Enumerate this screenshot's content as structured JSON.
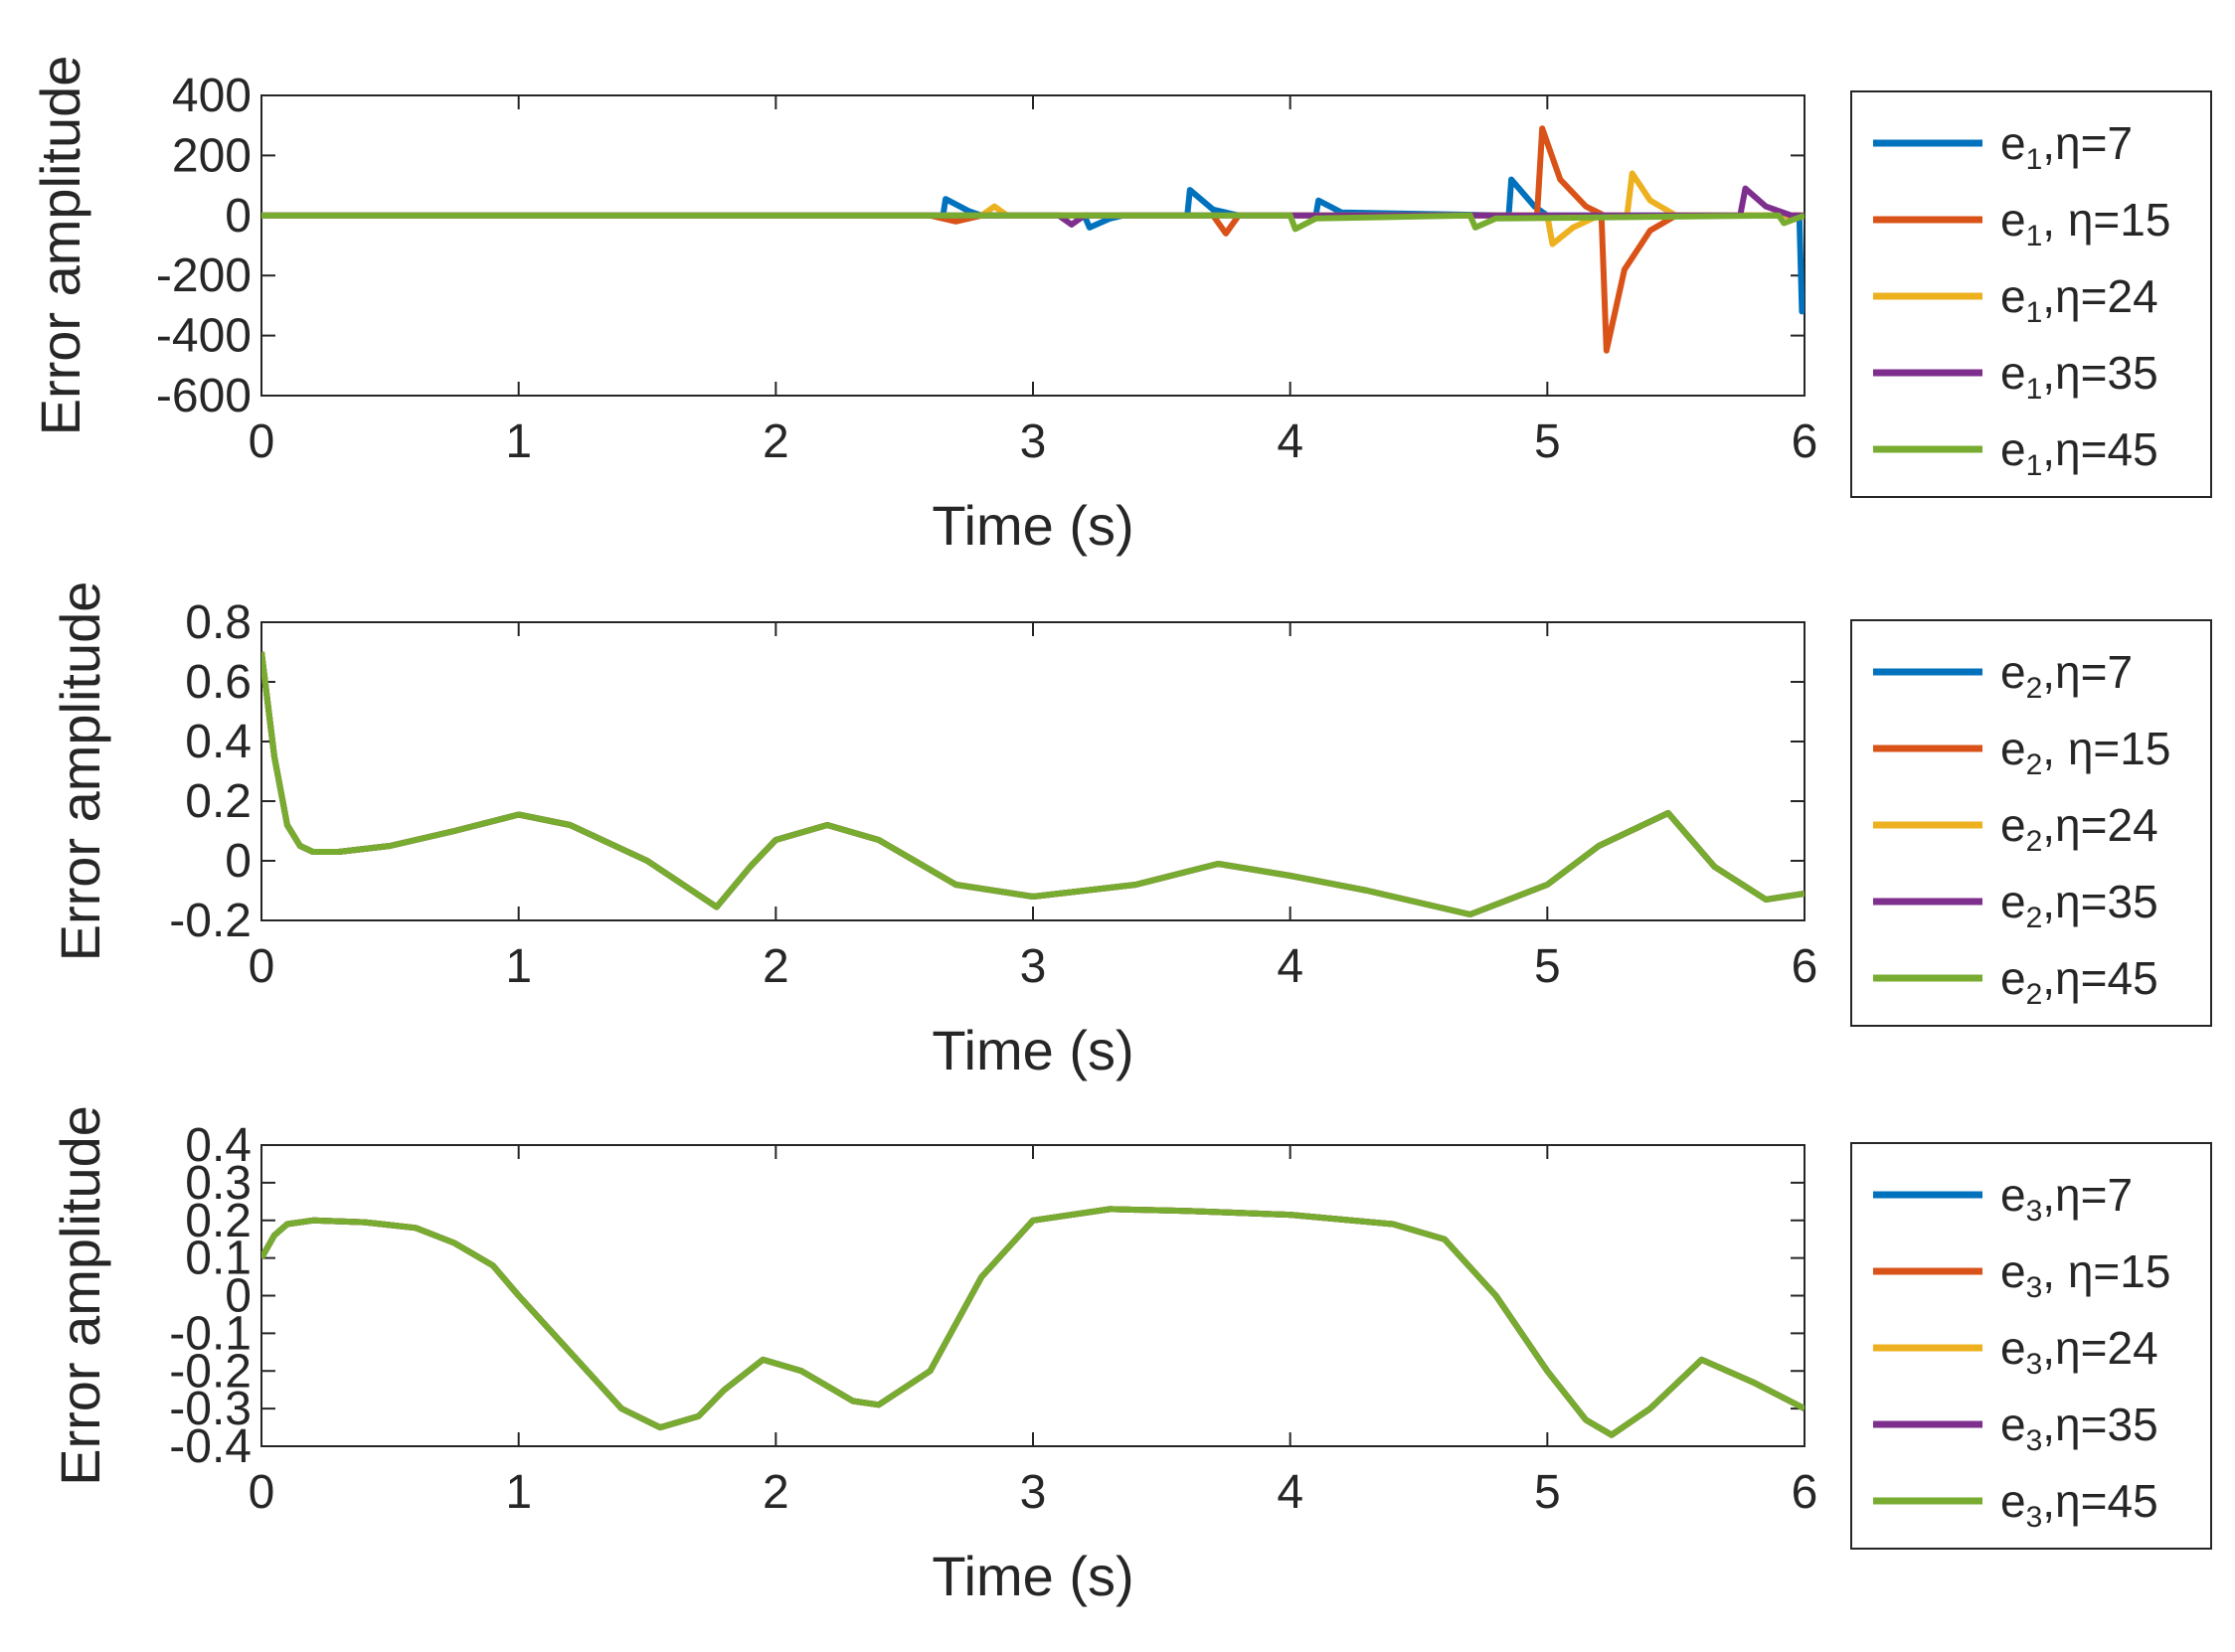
{
  "chart_data": [
    {
      "type": "line",
      "xlabel": "Time (s)",
      "ylabel": "Error amplitude",
      "xlim": [
        0,
        6
      ],
      "ylim": [
        -600,
        400
      ],
      "xticks": [
        "0",
        "1",
        "2",
        "3",
        "4",
        "5",
        "6"
      ],
      "yticks": [
        "400",
        "200",
        "0",
        "-200",
        "-400",
        "-600"
      ],
      "ytick_values": [
        400,
        200,
        0,
        -200,
        -400,
        -600
      ],
      "legend_position": "right-outside",
      "series": [
        {
          "name": "e1,η=7",
          "legend_base": "e",
          "legend_sub": "1",
          "legend_rest": ",η=7",
          "color": "#0072BD",
          "x": [
            0,
            2.65,
            2.66,
            2.75,
            2.8,
            3.2,
            3.22,
            3.3,
            3.35,
            3.6,
            3.61,
            3.7,
            3.8,
            4.1,
            4.11,
            4.2,
            4.85,
            4.86,
            4.95,
            5.0,
            5.8,
            5.98,
            5.99,
            6.0
          ],
          "y": [
            0,
            0,
            55,
            15,
            0,
            0,
            -40,
            -10,
            0,
            0,
            85,
            20,
            0,
            0,
            50,
            10,
            0,
            120,
            30,
            0,
            0,
            0,
            -320,
            -300
          ]
        },
        {
          "name": "e1, η=15",
          "legend_base": "e",
          "legend_sub": "1",
          "legend_rest": ", η=15",
          "color": "#D95319",
          "x": [
            0,
            2.6,
            2.7,
            2.8,
            3.7,
            3.75,
            3.8,
            4.9,
            4.96,
            4.98,
            5.05,
            5.15,
            5.21,
            5.23,
            5.3,
            5.4,
            5.5,
            6.0
          ],
          "y": [
            0,
            0,
            -20,
            0,
            0,
            -60,
            0,
            0,
            0,
            290,
            120,
            30,
            5,
            -450,
            -180,
            -50,
            0,
            0
          ]
        },
        {
          "name": "e1,η=24",
          "legend_base": "e",
          "legend_sub": "1",
          "legend_rest": ",η=24",
          "color": "#EDB120",
          "x": [
            0,
            2.8,
            2.85,
            2.9,
            5.0,
            5.02,
            5.1,
            5.2,
            5.31,
            5.33,
            5.4,
            5.5,
            6.0
          ],
          "y": [
            0,
            0,
            30,
            0,
            0,
            -95,
            -40,
            0,
            0,
            140,
            50,
            0,
            0
          ]
        },
        {
          "name": "e1,η=35",
          "legend_base": "e",
          "legend_sub": "1",
          "legend_rest": ",η=35",
          "color": "#7E2F8E",
          "x": [
            0,
            3.1,
            3.15,
            3.2,
            5.75,
            5.77,
            5.85,
            5.95,
            6.0
          ],
          "y": [
            0,
            0,
            -30,
            0,
            0,
            90,
            30,
            0,
            0
          ]
        },
        {
          "name": "e1,η=45",
          "legend_base": "e",
          "legend_sub": "1",
          "legend_rest": ",η=45",
          "color": "#77AC30",
          "x": [
            0,
            4.0,
            4.02,
            4.1,
            4.7,
            4.72,
            4.8,
            5.9,
            5.92,
            6.0
          ],
          "y": [
            0,
            0,
            -45,
            -10,
            0,
            -40,
            -10,
            0,
            -25,
            0
          ]
        }
      ]
    },
    {
      "type": "line",
      "xlabel": "Time (s)",
      "ylabel": "Error amplitude",
      "xlim": [
        0,
        6
      ],
      "ylim": [
        -0.2,
        0.8
      ],
      "xticks": [
        "0",
        "1",
        "2",
        "3",
        "4",
        "5",
        "6"
      ],
      "yticks": [
        "0.8",
        "0.6",
        "0.4",
        "0.2",
        "0",
        "-0.2"
      ],
      "ytick_values": [
        0.8,
        0.6,
        0.4,
        0.2,
        0,
        -0.2
      ],
      "legend_position": "right-outside",
      "shared_x": [
        0,
        0.05,
        0.1,
        0.15,
        0.2,
        0.3,
        0.5,
        0.75,
        1.0,
        1.2,
        1.5,
        1.77,
        1.9,
        2.0,
        2.2,
        2.4,
        2.7,
        3.0,
        3.4,
        3.72,
        4.0,
        4.3,
        4.7,
        5.0,
        5.2,
        5.47,
        5.65,
        5.85,
        6.0
      ],
      "shared_y": [
        0.7,
        0.35,
        0.12,
        0.05,
        0.03,
        0.03,
        0.05,
        0.1,
        0.155,
        0.12,
        0.0,
        -0.155,
        -0.02,
        0.07,
        0.12,
        0.07,
        -0.08,
        -0.12,
        -0.08,
        -0.01,
        -0.05,
        -0.1,
        -0.18,
        -0.08,
        0.05,
        0.16,
        -0.02,
        -0.13,
        -0.11
      ],
      "series": [
        {
          "name": "e2,η=7",
          "legend_base": "e",
          "legend_sub": "2",
          "legend_rest": ",η=7",
          "color": "#0072BD"
        },
        {
          "name": "e2, η=15",
          "legend_base": "e",
          "legend_sub": "2",
          "legend_rest": ", η=15",
          "color": "#D95319"
        },
        {
          "name": "e2,η=24",
          "legend_base": "e",
          "legend_sub": "2",
          "legend_rest": ",η=24",
          "color": "#EDB120"
        },
        {
          "name": "e2,η=35",
          "legend_base": "e",
          "legend_sub": "2",
          "legend_rest": ",η=35",
          "color": "#7E2F8E"
        },
        {
          "name": "e2,η=45",
          "legend_base": "e",
          "legend_sub": "2",
          "legend_rest": ",η=45",
          "color": "#77AC30"
        }
      ]
    },
    {
      "type": "line",
      "xlabel": "Time (s)",
      "ylabel": "Error amplitude",
      "xlim": [
        0,
        6
      ],
      "ylim": [
        -0.4,
        0.4
      ],
      "xticks": [
        "0",
        "1",
        "2",
        "3",
        "4",
        "5",
        "6"
      ],
      "yticks": [
        "0.4",
        "0.3",
        "0.2",
        "0.1",
        "0",
        "-0.1",
        "-0.2",
        "-0.3",
        "-0.4"
      ],
      "ytick_values": [
        0.4,
        0.3,
        0.2,
        0.1,
        0,
        -0.1,
        -0.2,
        -0.3,
        -0.4
      ],
      "legend_position": "right-outside",
      "shared_x": [
        0,
        0.05,
        0.1,
        0.2,
        0.4,
        0.6,
        0.75,
        0.9,
        1.0,
        1.2,
        1.4,
        1.55,
        1.7,
        1.8,
        1.95,
        2.1,
        2.3,
        2.4,
        2.6,
        2.8,
        3.0,
        3.3,
        3.6,
        4.0,
        4.4,
        4.6,
        4.8,
        5.0,
        5.15,
        5.25,
        5.4,
        5.6,
        5.8,
        6.0
      ],
      "shared_y": [
        0.1,
        0.16,
        0.19,
        0.2,
        0.195,
        0.18,
        0.14,
        0.08,
        0.0,
        -0.15,
        -0.3,
        -0.35,
        -0.32,
        -0.25,
        -0.17,
        -0.2,
        -0.28,
        -0.29,
        -0.2,
        0.05,
        0.2,
        0.23,
        0.225,
        0.215,
        0.19,
        0.15,
        0.0,
        -0.2,
        -0.33,
        -0.37,
        -0.3,
        -0.17,
        -0.23,
        -0.3
      ],
      "series": [
        {
          "name": "e3,η=7",
          "legend_base": "e",
          "legend_sub": "3",
          "legend_rest": ",η=7",
          "color": "#0072BD"
        },
        {
          "name": "e3, η=15",
          "legend_base": "e",
          "legend_sub": "3",
          "legend_rest": ", η=15",
          "color": "#D95319"
        },
        {
          "name": "e3,η=24",
          "legend_base": "e",
          "legend_sub": "3",
          "legend_rest": ",η=24",
          "color": "#EDB120"
        },
        {
          "name": "e3,η=35",
          "legend_base": "e",
          "legend_sub": "3",
          "legend_rest": ",η=35",
          "color": "#7E2F8E"
        },
        {
          "name": "e3,η=45",
          "legend_base": "e",
          "legend_sub": "3",
          "legend_rest": ",η=45",
          "color": "#77AC30"
        }
      ]
    }
  ]
}
